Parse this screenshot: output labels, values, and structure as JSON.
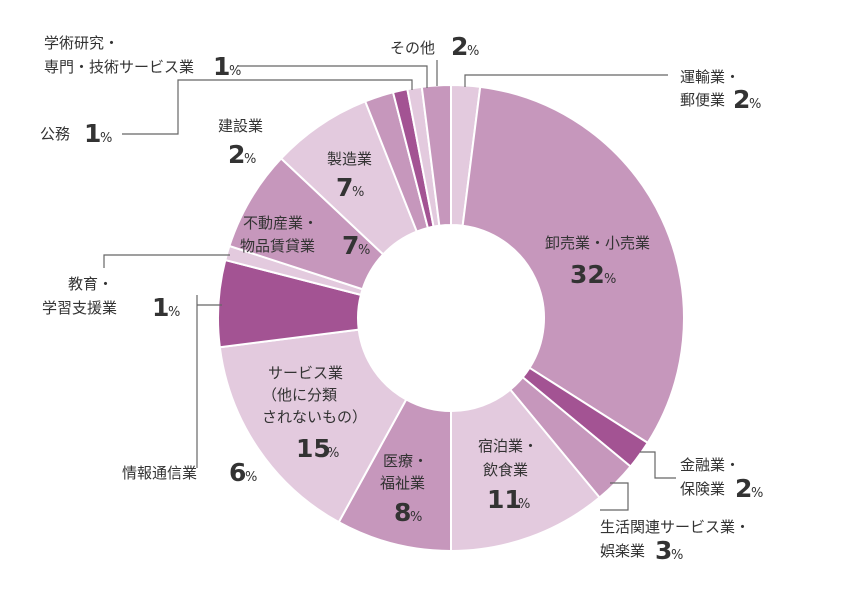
{
  "chart_data": {
    "type": "pie",
    "donut": true,
    "unit": "%",
    "series": [
      {
        "label": "運輸業・郵便業",
        "value": 2,
        "color": "#e3cade"
      },
      {
        "label": "卸売業・小売業",
        "value": 32,
        "color": "#c697bc"
      },
      {
        "label": "金融業・保険業",
        "value": 2,
        "color": "#a35393"
      },
      {
        "label": "生活関連サービス業・娯楽業",
        "value": 3,
        "color": "#c697bc"
      },
      {
        "label": "宿泊業・飲食業",
        "value": 11,
        "color": "#e3cade"
      },
      {
        "label": "医療・福祉業",
        "value": 8,
        "color": "#c697bc"
      },
      {
        "label": "サービス業（他に分類されないもの）",
        "value": 15,
        "color": "#e3cade"
      },
      {
        "label": "情報通信業",
        "value": 6,
        "color": "#a35393"
      },
      {
        "label": "教育・学習支援業",
        "value": 1,
        "color": "#e3cade"
      },
      {
        "label": "不動産業・物品賃貸業",
        "value": 7,
        "color": "#c697bc"
      },
      {
        "label": "製造業",
        "value": 7,
        "color": "#e3cade"
      },
      {
        "label": "建設業",
        "value": 2,
        "color": "#c697bc"
      },
      {
        "label": "公務",
        "value": 1,
        "color": "#a35393"
      },
      {
        "label": "学術研究・専門・技術サービス業",
        "value": 1,
        "color": "#e3cade"
      },
      {
        "label": "その他",
        "value": 2,
        "color": "#c697bc"
      }
    ]
  }
}
